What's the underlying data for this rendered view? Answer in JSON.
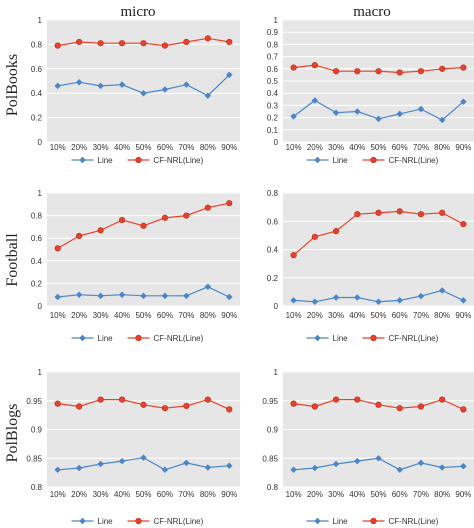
{
  "column_titles": [
    "micro",
    "macro"
  ],
  "row_titles": [
    "PolBooks",
    "Football",
    "PolBlogs"
  ],
  "colors": {
    "line": "#4a86c8",
    "cfnrl": "#e8412c",
    "plot_bg": "#e6e6e6",
    "grid": "#ffffff"
  },
  "chart_data": [
    {
      "type": "line",
      "panel": "PolBooks-micro",
      "grid": true,
      "legend": "bottom",
      "categories": [
        "10%",
        "20%",
        "30%",
        "40%",
        "50%",
        "60%",
        "70%",
        "80%",
        "90%"
      ],
      "ylim": [
        0,
        1
      ],
      "yticks": [
        "0",
        "0.2",
        "0.4",
        "0.6",
        "0.8",
        "1"
      ],
      "series": [
        {
          "name": "Line",
          "values": [
            0.46,
            0.49,
            0.46,
            0.47,
            0.4,
            0.43,
            0.47,
            0.38,
            0.55
          ]
        },
        {
          "name": "CF-NRL(Line)",
          "values": [
            0.79,
            0.82,
            0.81,
            0.81,
            0.81,
            0.79,
            0.82,
            0.85,
            0.82
          ]
        }
      ]
    },
    {
      "type": "line",
      "panel": "PolBooks-macro",
      "grid": true,
      "legend": "bottom",
      "categories": [
        "10%",
        "20%",
        "30%",
        "40%",
        "50%",
        "60%",
        "70%",
        "80%",
        "90%"
      ],
      "ylim": [
        0,
        1
      ],
      "yticks": [
        "0",
        "0.1",
        "0.2",
        "0.3",
        "0.4",
        "0.5",
        "0.6",
        "0.7",
        "0.8",
        "0.9",
        "1"
      ],
      "series": [
        {
          "name": "Line",
          "values": [
            0.21,
            0.34,
            0.24,
            0.25,
            0.19,
            0.23,
            0.27,
            0.18,
            0.33
          ]
        },
        {
          "name": "CF-NRL(Line)",
          "values": [
            0.61,
            0.63,
            0.58,
            0.58,
            0.58,
            0.57,
            0.58,
            0.6,
            0.61
          ]
        }
      ]
    },
    {
      "type": "line",
      "panel": "Football-micro",
      "grid": true,
      "legend": "bottom",
      "categories": [
        "10%",
        "20%",
        "30%",
        "40%",
        "50%",
        "60%",
        "70%",
        "80%",
        "90%"
      ],
      "ylim": [
        0,
        1
      ],
      "yticks": [
        "0",
        "0.2",
        "0.4",
        "0.6",
        "0.8",
        "1"
      ],
      "series": [
        {
          "name": "Line",
          "values": [
            0.08,
            0.1,
            0.09,
            0.1,
            0.09,
            0.09,
            0.09,
            0.17,
            0.08
          ]
        },
        {
          "name": "CF-NRL(Line)",
          "values": [
            0.51,
            0.62,
            0.67,
            0.76,
            0.71,
            0.78,
            0.8,
            0.87,
            0.91
          ]
        }
      ]
    },
    {
      "type": "line",
      "panel": "Football-macro",
      "grid": true,
      "legend": "bottom",
      "categories": [
        "10%",
        "20%",
        "30%",
        "40%",
        "50%",
        "60%",
        "70%",
        "80%",
        "90%"
      ],
      "ylim": [
        0,
        0.8
      ],
      "yticks": [
        "0",
        "0.2",
        "0.4",
        "0.6",
        "0.8"
      ],
      "series": [
        {
          "name": "Line",
          "values": [
            0.04,
            0.03,
            0.06,
            0.06,
            0.03,
            0.04,
            0.07,
            0.11,
            0.04
          ]
        },
        {
          "name": "CF-NRL(Line)",
          "values": [
            0.36,
            0.49,
            0.53,
            0.65,
            0.66,
            0.67,
            0.65,
            0.66,
            0.58
          ]
        }
      ]
    },
    {
      "type": "line",
      "panel": "PolBlogs-micro",
      "grid": true,
      "legend": "bottom",
      "categories": [
        "10%",
        "20%",
        "30%",
        "40%",
        "50%",
        "60%",
        "70%",
        "80%",
        "90%"
      ],
      "ylim": [
        0.8,
        1
      ],
      "yticks": [
        "0.8",
        "0.85",
        "0.9",
        "0.95",
        "1"
      ],
      "series": [
        {
          "name": "Line",
          "values": [
            0.83,
            0.833,
            0.84,
            0.845,
            0.851,
            0.83,
            0.842,
            0.834,
            0.837
          ]
        },
        {
          "name": "CF-NRL(Line)",
          "values": [
            0.945,
            0.94,
            0.952,
            0.952,
            0.943,
            0.937,
            0.941,
            0.952,
            0.935
          ]
        }
      ]
    },
    {
      "type": "line",
      "panel": "PolBlogs-macro",
      "grid": true,
      "legend": "bottom",
      "categories": [
        "10%",
        "20%",
        "30%",
        "40%",
        "50%",
        "60%",
        "70%",
        "80%",
        "90%"
      ],
      "ylim": [
        0.8,
        1
      ],
      "yticks": [
        "0.8",
        "0.85",
        "0.9",
        "0.95",
        "1"
      ],
      "series": [
        {
          "name": "Line",
          "values": [
            0.83,
            0.833,
            0.84,
            0.845,
            0.85,
            0.83,
            0.842,
            0.834,
            0.836
          ]
        },
        {
          "name": "CF-NRL(Line)",
          "values": [
            0.945,
            0.94,
            0.952,
            0.952,
            0.943,
            0.937,
            0.94,
            0.952,
            0.935
          ]
        }
      ]
    }
  ]
}
